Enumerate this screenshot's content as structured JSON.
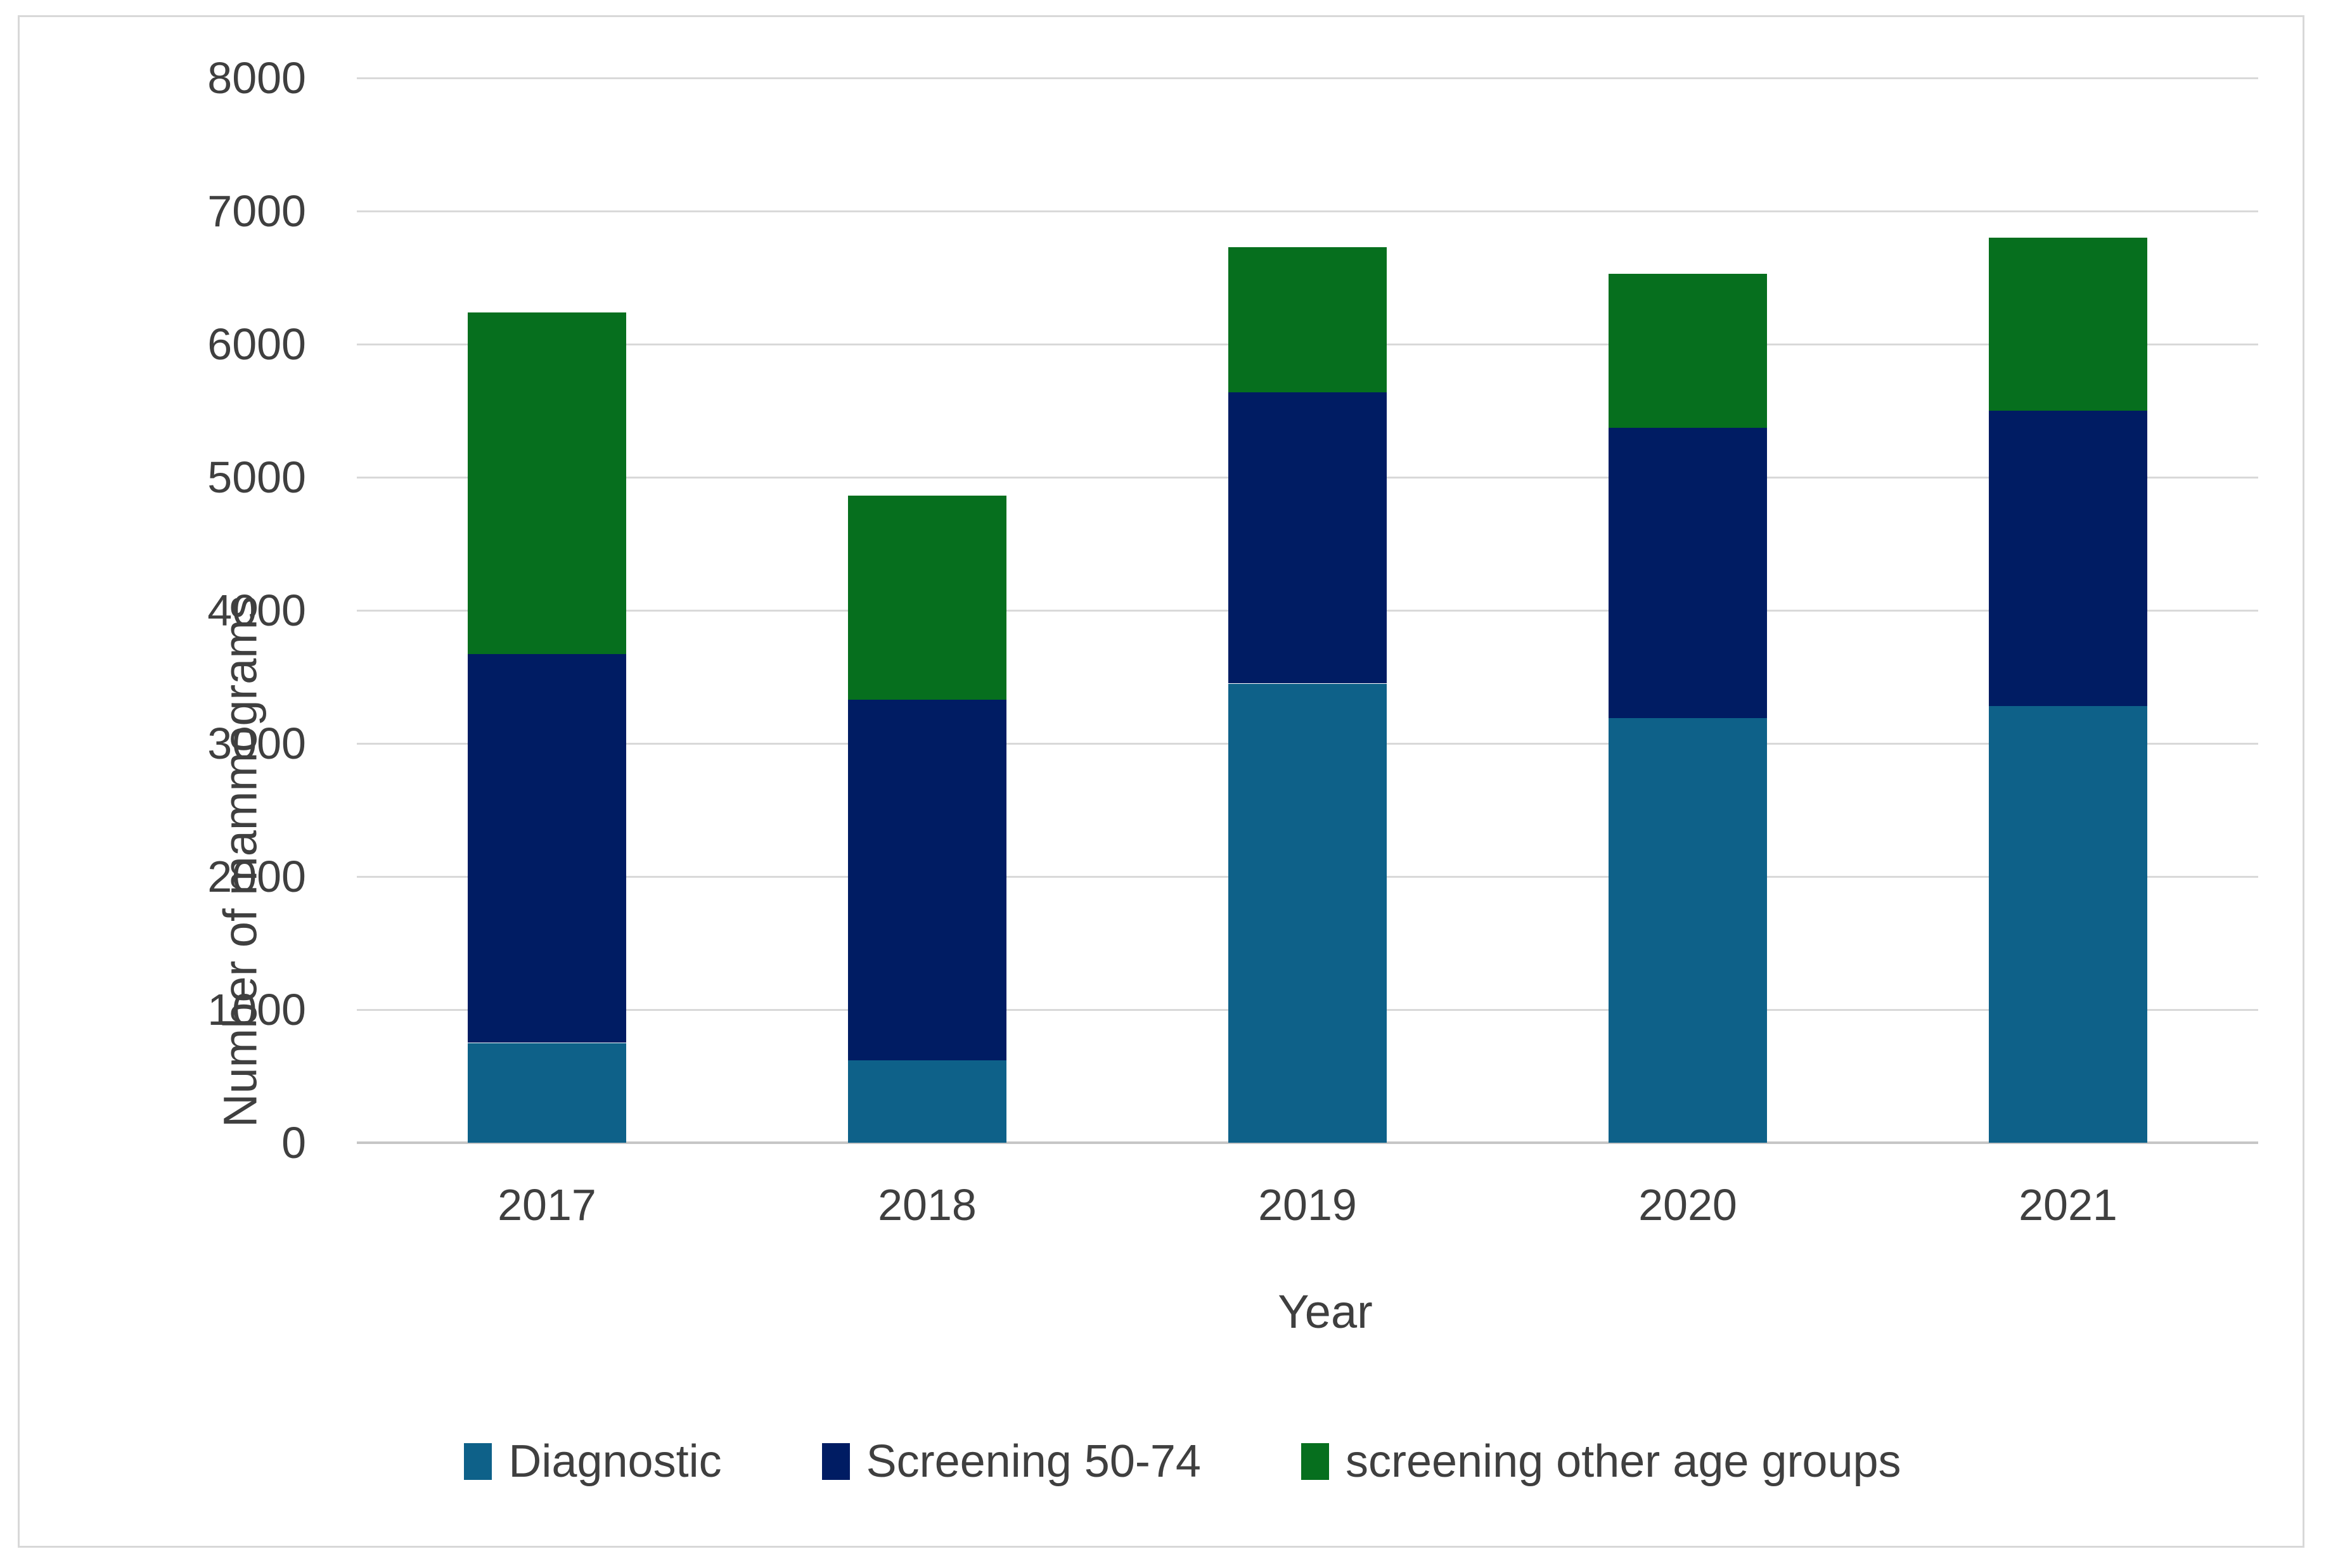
{
  "chart_data": {
    "type": "bar",
    "stacked": true,
    "title": "",
    "categories": [
      "2017",
      "2018",
      "2019",
      "2020",
      "2021"
    ],
    "series": [
      {
        "name": "Diagnostic",
        "color": "#0e6189",
        "values": [
          750,
          620,
          3450,
          3190,
          3280
        ]
      },
      {
        "name": "Screening 50-74",
        "color": "#001c63",
        "values": [
          2920,
          2710,
          2190,
          2180,
          2220
        ]
      },
      {
        "name": "screening other age groups",
        "color": "#066f1e",
        "values": [
          2570,
          1530,
          1090,
          1160,
          1300
        ]
      }
    ],
    "stack_totals": [
      6240,
      4860,
      6730,
      6530,
      6800
    ],
    "xlabel": "Year",
    "ylabel": "Number of mammograms",
    "ylim": [
      0,
      8000
    ],
    "ytick_step": 1000,
    "yticks": [
      "0",
      "1000",
      "2000",
      "3000",
      "4000",
      "5000",
      "6000",
      "7000",
      "8000"
    ],
    "grid": true,
    "grid_color": "#d9d9d9",
    "axis_line_color": "#c6c6c6",
    "text_color": "#3f3f3f",
    "legend_position": "bottom"
  }
}
